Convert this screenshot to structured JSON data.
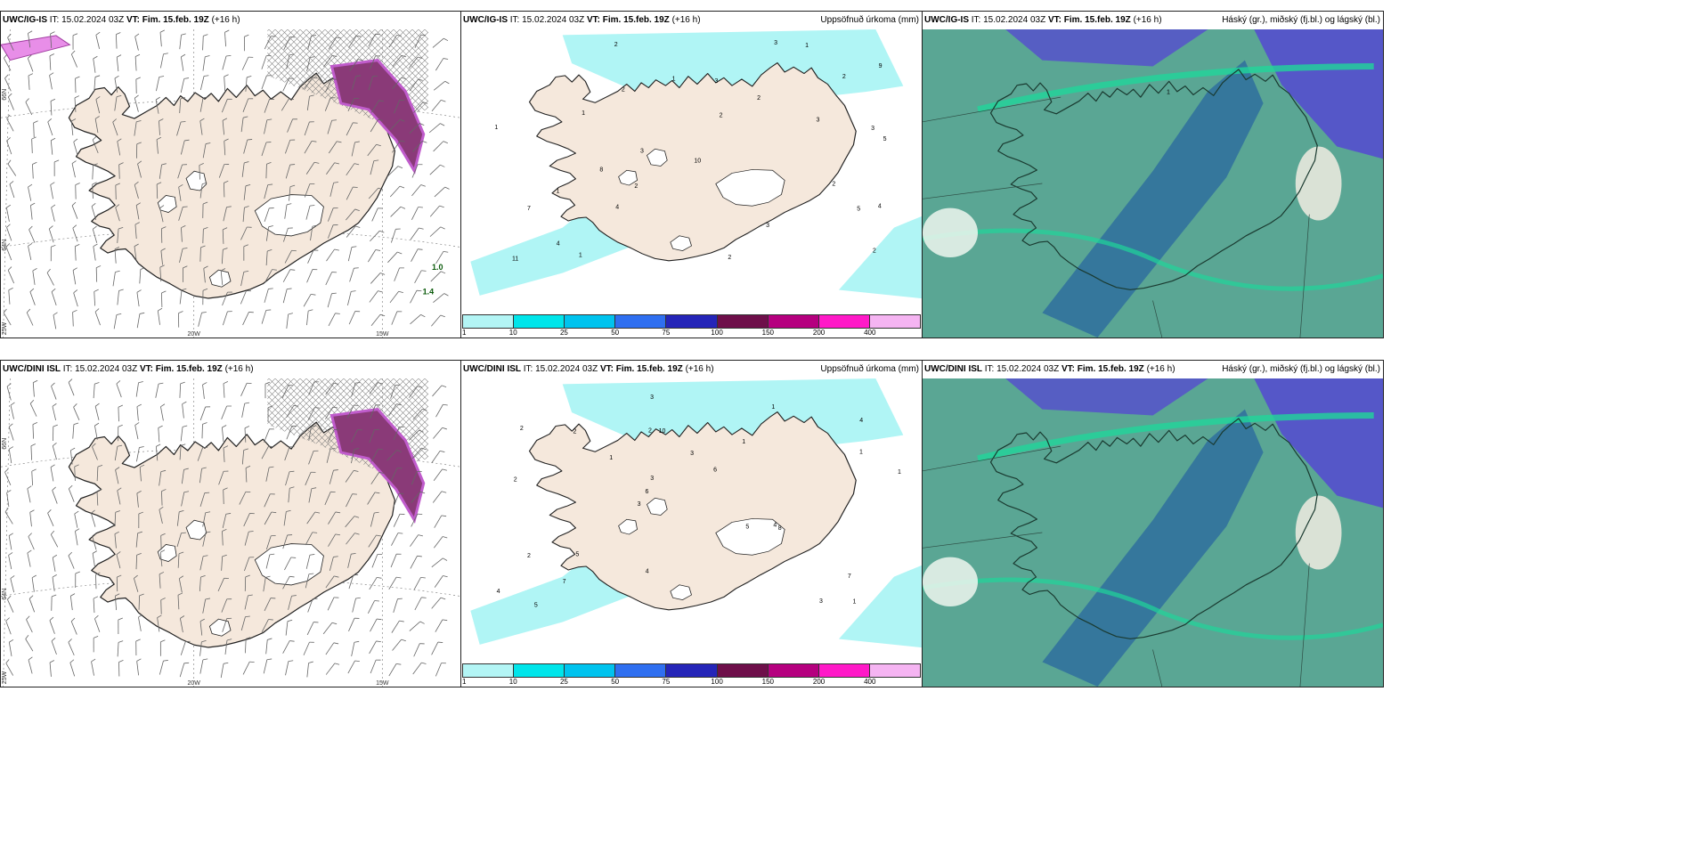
{
  "rows": [
    {
      "panels": [
        {
          "model": "UWC/IG-IS",
          "init_label": "IT:",
          "init": "15.02.2024 03Z",
          "vt_label": "VT:",
          "vt": "Fim. 15.feb. 19Z",
          "lead": "(+16 h)",
          "title_right": "",
          "type": "wind"
        },
        {
          "model": "UWC/IG-IS",
          "init_label": "IT:",
          "init": "15.02.2024 03Z",
          "vt_label": "VT:",
          "vt": "Fim. 15.feb. 19Z",
          "lead": "(+16 h)",
          "title_right": "Uppsöfnuð úrkoma (mm)",
          "type": "precip"
        },
        {
          "model": "UWC/IG-IS",
          "init_label": "IT:",
          "init": "15.02.2024 03Z",
          "vt_label": "VT:",
          "vt": "Fim. 15.feb. 19Z",
          "lead": "(+16 h)",
          "title_right": "Háský (gr.), miðský (fj.bl.) og lágský (bl.)",
          "type": "cloud"
        }
      ]
    },
    {
      "panels": [
        {
          "model": "UWC/DINI ISL",
          "init_label": "IT:",
          "init": "15.02.2024 03Z",
          "vt_label": "VT:",
          "vt": "Fim. 15.feb. 19Z",
          "lead": "(+16 h)",
          "title_right": "",
          "type": "wind"
        },
        {
          "model": "UWC/DINI ISL",
          "init_label": "IT:",
          "init": "15.02.2024 03Z",
          "vt_label": "VT:",
          "vt": "Fim. 15.feb. 19Z",
          "lead": "(+16 h)",
          "title_right": "Uppsöfnuð úrkoma (mm)",
          "type": "precip"
        },
        {
          "model": "UWC/DINI ISL",
          "init_label": "IT:",
          "init": "15.02.2024 03Z",
          "vt_label": "VT:",
          "vt": "Fim. 15.feb. 19Z",
          "lead": "(+16 h)",
          "title_right": "Háský (gr.), miðský (fj.bl.) og lágský (bl.)",
          "type": "cloud"
        }
      ]
    }
  ],
  "axis_labels": {
    "lat_66": "66N",
    "lat_64": "64N",
    "lon_25": "25W",
    "lon_20": "20W",
    "lon_15": "15W"
  },
  "precip_legend": {
    "labels": [
      "1",
      "10",
      "25",
      "50",
      "75",
      "100",
      "150",
      "200",
      "400"
    ],
    "colors": [
      "#b3f5f5",
      "#00e5ea",
      "#00c3ee",
      "#2f6ff0",
      "#2525b8",
      "#6e0f4a",
      "#b5007f",
      "#ff19c8",
      "#f5b4f2"
    ]
  },
  "colors": {
    "land": "#f5e8dc",
    "glacier": "#ffffff",
    "coast": "#222222",
    "precip_light": "#b0f5f5",
    "cloud_high": "#5557c8",
    "cloud_mid": "#2f6e9e",
    "cloud_low": "#5aa694",
    "cloud_edge": "#20d69a",
    "wind_barb": "#666666",
    "snow_accum": "#c05ccc"
  },
  "precip_labels_top": [
    "2",
    "3",
    "2",
    "5",
    "3",
    "4",
    "2",
    "3",
    "5",
    "2",
    "1",
    "2",
    "3",
    "4",
    "7",
    "10",
    "8",
    "1",
    "2",
    "1",
    "2",
    "3",
    "4",
    "1",
    "2",
    "1",
    "11",
    "3",
    "2",
    "9",
    "1"
  ],
  "precip_labels_bottom": [
    "1",
    "2",
    "4",
    "3",
    "1",
    "5",
    "2",
    "3",
    "2",
    "1",
    "4",
    "7",
    "10",
    "6",
    "8",
    "2",
    "3",
    "1",
    "5",
    "1",
    "6",
    "4",
    "3",
    "2",
    "1",
    "5",
    "3",
    "7",
    "4"
  ],
  "cloud_label_top": "1",
  "wind_labels_top": [
    "1.0",
    "1.4"
  ]
}
